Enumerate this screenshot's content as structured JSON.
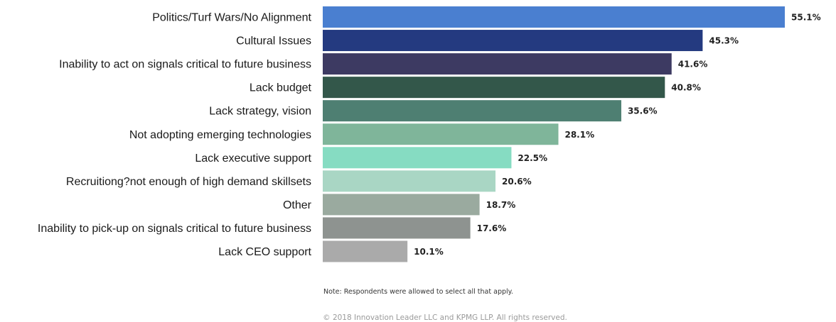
{
  "chart_data": {
    "type": "bar",
    "orientation": "horizontal",
    "categories": [
      "Politics/Turf Wars/No Alignment",
      "Cultural Issues",
      "Inability to act on signals critical to future business",
      "Lack budget",
      "Lack strategy, vision",
      "Not adopting emerging technologies",
      "Lack executive support",
      "Recruitiong?not enough of high demand skillsets",
      "Other",
      "Inability to pick-up on signals critical to future business",
      "Lack CEO support"
    ],
    "values": [
      55.1,
      45.3,
      41.6,
      40.8,
      35.6,
      28.1,
      22.5,
      20.6,
      18.7,
      17.6,
      10.1
    ],
    "value_labels": [
      "55.1%",
      "45.3%",
      "41.6%",
      "40.8%",
      "35.6%",
      "28.1%",
      "22.5%",
      "20.6%",
      "18.7%",
      "17.6%",
      "10.1%"
    ],
    "colors": [
      "#4a7fd0",
      "#243a80",
      "#3d3a62",
      "#33574a",
      "#4e7f72",
      "#7fb59a",
      "#86dcc2",
      "#a9d6c4",
      "#9aaa9f",
      "#8e9390",
      "#aaaaaa"
    ],
    "xlim": [
      0,
      55.1
    ],
    "grid": false,
    "title": "",
    "xlabel": "",
    "ylabel": ""
  },
  "note": "Note: Respondents were allowed to select all that apply.",
  "copyright": "© 2018 Innovation Leader LLC and KPMG LLP. All rights reserved."
}
